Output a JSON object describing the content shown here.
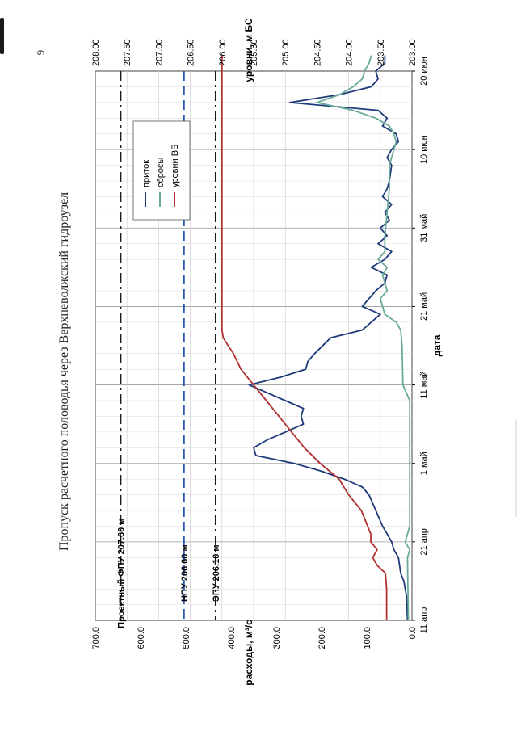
{
  "page": {
    "page_number": "6",
    "title": "Пропуск расчетного половодья через Верхневолжский гидроузел"
  },
  "chart_data": {
    "type": "line",
    "xlabel": "дата",
    "ylabel_left": "расходы, м³/с",
    "ylabel_right": "уровни, м БС",
    "x_tick_labels": [
      "11 апр",
      "21 апр",
      "1 май",
      "11 май",
      "21 май",
      "31 май",
      "10 июн",
      "20 июн"
    ],
    "x_range_days": [
      0,
      70
    ],
    "ylim_left": [
      0,
      700
    ],
    "y_left_ticks": [
      "0.0",
      "100.0",
      "200.0",
      "300.0",
      "400.0",
      "500.0",
      "600.0",
      "700.0"
    ],
    "ylim_right": [
      203.0,
      208.0
    ],
    "y_right_ticks": [
      "203.00",
      "203.50",
      "204.00",
      "204.50",
      "205.00",
      "205.50",
      "206.00",
      "206.50",
      "207.00",
      "207.50",
      "208.00"
    ],
    "grid": true,
    "legend_position": "top-right",
    "series": [
      {
        "name": "приток",
        "color": "#1f3a7a",
        "axis": "left",
        "points": [
          [
            0,
            10
          ],
          [
            3,
            12
          ],
          [
            5,
            18
          ],
          [
            6,
            25
          ],
          [
            8,
            30
          ],
          [
            9,
            40
          ],
          [
            10,
            45
          ],
          [
            11,
            55
          ],
          [
            12,
            65
          ],
          [
            14,
            80
          ],
          [
            16,
            95
          ],
          [
            17,
            110
          ],
          [
            18,
            150
          ],
          [
            19,
            200
          ],
          [
            20,
            260
          ],
          [
            21,
            345
          ],
          [
            22,
            350
          ],
          [
            23,
            320
          ],
          [
            24,
            280
          ],
          [
            25,
            240
          ],
          [
            26,
            245
          ],
          [
            27,
            240
          ],
          [
            28,
            280
          ],
          [
            29,
            320
          ],
          [
            30,
            360
          ],
          [
            31,
            290
          ],
          [
            32,
            235
          ],
          [
            33,
            230
          ],
          [
            34,
            215
          ],
          [
            36,
            180
          ],
          [
            37,
            110
          ],
          [
            38,
            90
          ],
          [
            39,
            70
          ],
          [
            40,
            110
          ],
          [
            41,
            95
          ],
          [
            42,
            80
          ],
          [
            43,
            60
          ],
          [
            44,
            55
          ],
          [
            45,
            90
          ],
          [
            46,
            60
          ],
          [
            47,
            45
          ],
          [
            48,
            75
          ],
          [
            49,
            55
          ],
          [
            50,
            70
          ],
          [
            51,
            50
          ],
          [
            52,
            60
          ],
          [
            53,
            45
          ],
          [
            54,
            65
          ],
          [
            55,
            55
          ],
          [
            56,
            50
          ],
          [
            58,
            45
          ],
          [
            59,
            55
          ],
          [
            60,
            45
          ],
          [
            61,
            30
          ],
          [
            62,
            35
          ],
          [
            63,
            65
          ],
          [
            64,
            55
          ],
          [
            65,
            75
          ],
          [
            66,
            270
          ],
          [
            67,
            160
          ],
          [
            68,
            90
          ],
          [
            69,
            75
          ],
          [
            70,
            80
          ],
          [
            71,
            60
          ],
          [
            72,
            60
          ]
        ]
      },
      {
        "name": "сбросы",
        "color": "#6aaa9a",
        "axis": "left",
        "points": [
          [
            0,
            8
          ],
          [
            8,
            10
          ],
          [
            9,
            5
          ],
          [
            10,
            15
          ],
          [
            11,
            10
          ],
          [
            12,
            5
          ],
          [
            20,
            5
          ],
          [
            28,
            5
          ],
          [
            30,
            20
          ],
          [
            35,
            22
          ],
          [
            37,
            25
          ],
          [
            38,
            35
          ],
          [
            39,
            60
          ],
          [
            40,
            65
          ],
          [
            41,
            70
          ],
          [
            42,
            55
          ],
          [
            44,
            65
          ],
          [
            45,
            55
          ],
          [
            46,
            75
          ],
          [
            47,
            60
          ],
          [
            49,
            60
          ],
          [
            52,
            55
          ],
          [
            55,
            50
          ],
          [
            58,
            50
          ],
          [
            60,
            40
          ],
          [
            61,
            35
          ],
          [
            62,
            40
          ],
          [
            63,
            50
          ],
          [
            64,
            80
          ],
          [
            65,
            130
          ],
          [
            66,
            210
          ],
          [
            67,
            160
          ],
          [
            68,
            130
          ],
          [
            69,
            110
          ],
          [
            70,
            105
          ],
          [
            71,
            95
          ],
          [
            72,
            90
          ]
        ]
      },
      {
        "name": "уровни ВБ",
        "color": "#b03030",
        "axis": "right",
        "points": [
          [
            0,
            203.4
          ],
          [
            4,
            203.4
          ],
          [
            6,
            203.42
          ],
          [
            7,
            203.55
          ],
          [
            8,
            203.62
          ],
          [
            9,
            203.55
          ],
          [
            10,
            203.65
          ],
          [
            11,
            203.65
          ],
          [
            12,
            203.7
          ],
          [
            14,
            203.8
          ],
          [
            16,
            204.0
          ],
          [
            18,
            204.15
          ],
          [
            20,
            204.45
          ],
          [
            22,
            204.7
          ],
          [
            24,
            204.9
          ],
          [
            26,
            205.1
          ],
          [
            28,
            205.3
          ],
          [
            30,
            205.5
          ],
          [
            32,
            205.7
          ],
          [
            34,
            205.82
          ],
          [
            35,
            205.9
          ],
          [
            36,
            205.98
          ],
          [
            37,
            206.0
          ],
          [
            40,
            206.0
          ],
          [
            50,
            206.0
          ],
          [
            60,
            206.0
          ],
          [
            70,
            206.0
          ],
          [
            72,
            206.0
          ]
        ]
      }
    ],
    "reference_lines": [
      {
        "label": "Проектный ФПУ 207.60 м",
        "value": 207.6,
        "color": "#1a1a1a",
        "style": "dash-dot"
      },
      {
        "label": "НПУ 206.60 м",
        "value": 206.6,
        "color": "#2a56b8",
        "style": "dash"
      },
      {
        "label": "ЭПУ 206.10 м",
        "value": 206.1,
        "color": "#1a1a1a",
        "style": "dash-dot"
      }
    ]
  }
}
